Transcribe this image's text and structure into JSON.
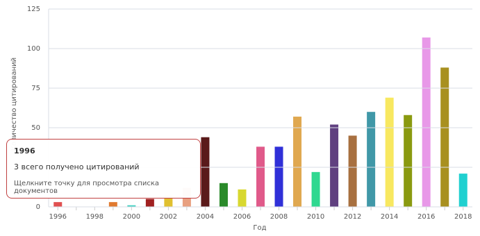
{
  "chart_data": {
    "type": "bar",
    "y_label": "Количество цитирований",
    "x_label": "Год",
    "categories": [
      "1996",
      null,
      "1998",
      null,
      "2000",
      null,
      "2002",
      null,
      "2004",
      null,
      "2006",
      null,
      "2008",
      null,
      "2010",
      null,
      "2012",
      null,
      "2014",
      null,
      "2016",
      null,
      "2018"
    ],
    "values": [
      3,
      0,
      0,
      3,
      1,
      5,
      7,
      12,
      44,
      15,
      11,
      38,
      38,
      57,
      22,
      52,
      45,
      60,
      69,
      58,
      107,
      88,
      21
    ],
    "colors": [
      "#e05050",
      "#cccccc",
      "#cccccc",
      "#e07a30",
      "#40d0c0",
      "#a02020",
      "#e0c030",
      "#e8a080",
      "#5a1a1a",
      "#2a8a2a",
      "#d8d830",
      "#e05a8a",
      "#3030d8",
      "#e0a850",
      "#30d890",
      "#604080",
      "#a87040",
      "#4098a8",
      "#f8e860",
      "#8a9a10",
      "#e898e8",
      "#a89020",
      "#20d0d0"
    ],
    "ylim": [
      0,
      125
    ],
    "yticks": [
      0,
      25,
      50,
      75,
      100,
      125
    ],
    "grid": true,
    "tooltip": {
      "title": "1996",
      "line": "3 всего получено цитирований",
      "hint": "Щелкните точку для просмотра списка документов"
    }
  }
}
